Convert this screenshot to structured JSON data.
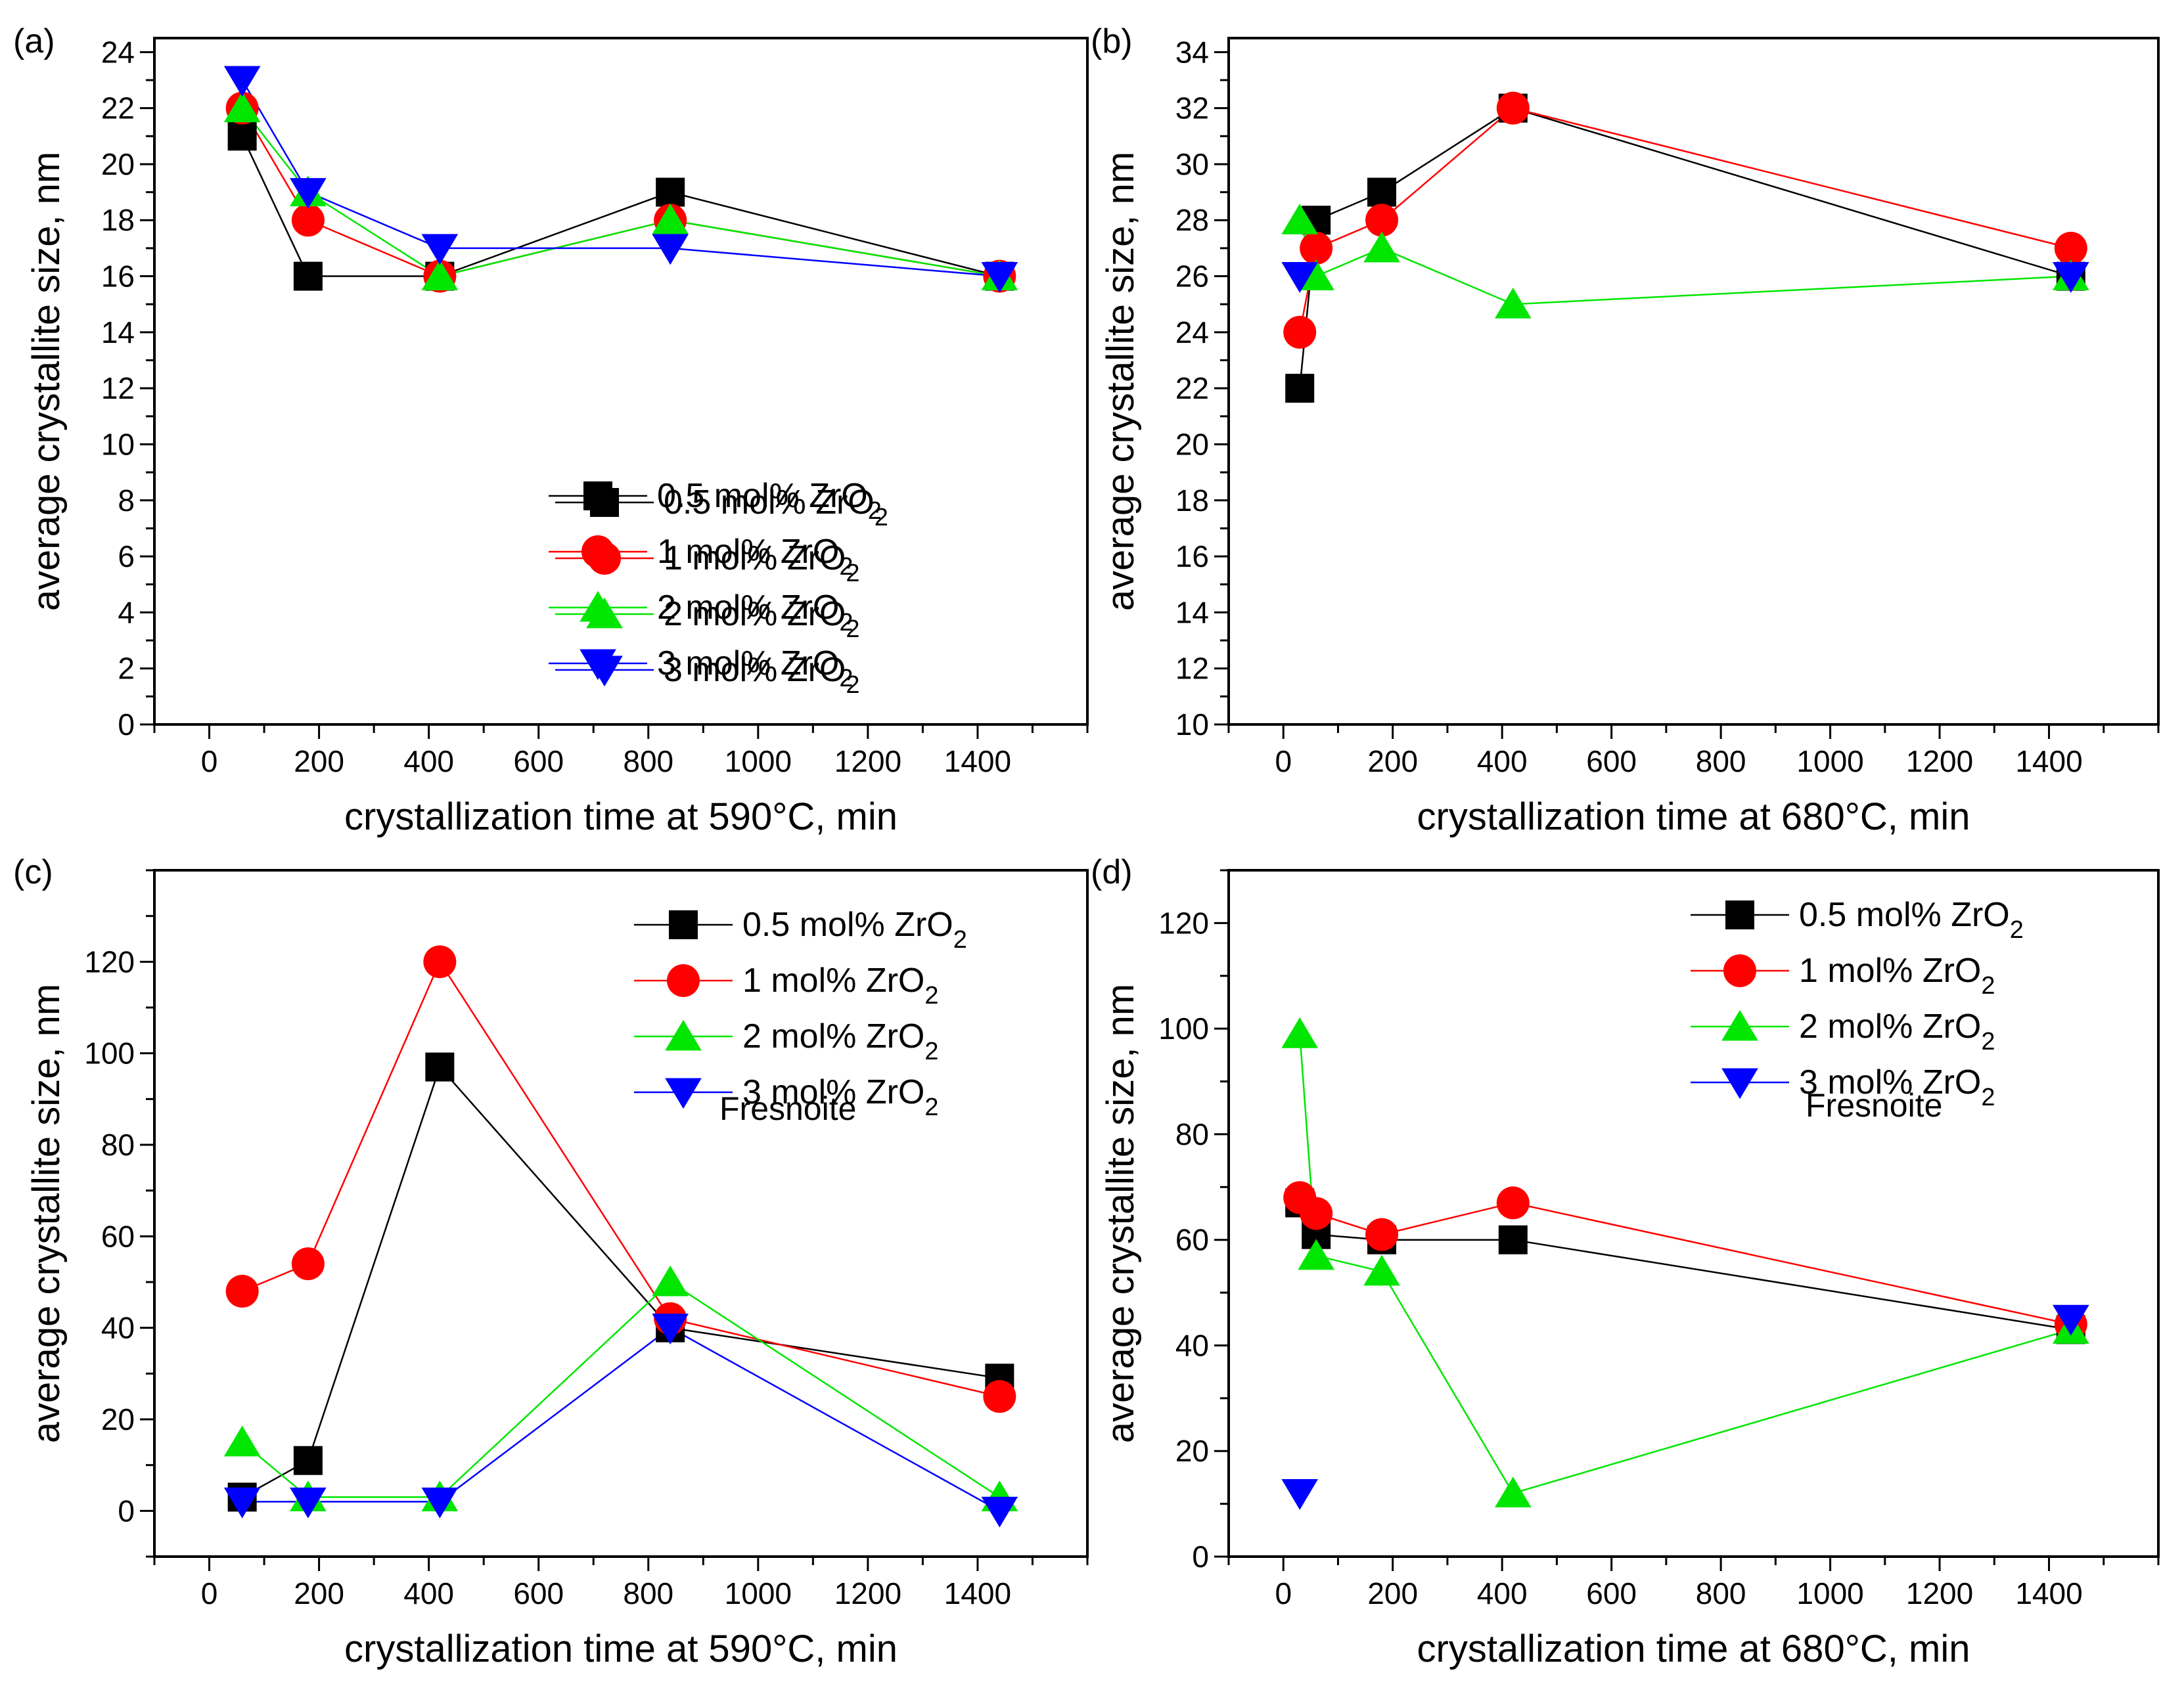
{
  "colors": {
    "0.5 mol% ZrO2": "#000000",
    "1 mol% ZrO2": "#ff0000",
    "2 mol% ZrO2": "#00e600",
    "3 mol% ZrO2": "#0000ff"
  },
  "chart_data": [
    {
      "panel": "(a)",
      "type": "line",
      "title": "",
      "xlabel": "crystallization time at 590°C, min",
      "ylabel": "average crystallite size, nm",
      "xlim": [
        -100,
        1600
      ],
      "ylim": [
        0,
        24.5
      ],
      "xticks": [
        0,
        200,
        400,
        600,
        800,
        1000,
        1200,
        1400
      ],
      "yticks": [
        0,
        2,
        4,
        6,
        8,
        10,
        12,
        14,
        16,
        18,
        20,
        22,
        24
      ],
      "legend_position": "lower-right",
      "annotation": "",
      "series": [
        {
          "name": "0.5 mol% ZrO2",
          "label_main": "0.5 mol% ZrO",
          "label_sub": "2",
          "marker": "square",
          "x": [
            60,
            180,
            420,
            840,
            1440
          ],
          "y": [
            21,
            16,
            16,
            19,
            16
          ]
        },
        {
          "name": "1 mol% ZrO2",
          "label_main": "1 mol% ZrO",
          "label_sub": "2",
          "marker": "circle",
          "x": [
            60,
            180,
            420,
            840,
            1440
          ],
          "y": [
            22,
            18,
            16,
            18,
            16
          ]
        },
        {
          "name": "2 mol% ZrO2",
          "label_main": "2 mol% ZrO",
          "label_sub": "2",
          "marker": "triangle-up",
          "x": [
            60,
            180,
            420,
            840,
            1440
          ],
          "y": [
            22,
            19,
            16,
            18,
            16
          ]
        },
        {
          "name": "3 mol% ZrO2",
          "label_main": "3 mol% ZrO",
          "label_sub": "2",
          "marker": "triangle-down",
          "x": [
            60,
            180,
            420,
            840,
            1440
          ],
          "y": [
            23,
            19,
            17,
            17,
            16
          ]
        }
      ]
    },
    {
      "panel": "(b)",
      "type": "line",
      "title": "",
      "xlabel": "crystallization time at 680°C, min",
      "ylabel": "average crystallite size, nm",
      "xlim": [
        -100,
        1600
      ],
      "ylim": [
        10,
        34.5
      ],
      "xticks": [
        0,
        200,
        400,
        600,
        800,
        1000,
        1200,
        1400
      ],
      "yticks": [
        10,
        12,
        14,
        16,
        18,
        20,
        22,
        24,
        26,
        28,
        30,
        32,
        34
      ],
      "legend_position": "lower-right",
      "annotation": "",
      "series": [
        {
          "name": "0.5 mol% ZrO2",
          "label_main": "0.5 mol% ZrO",
          "label_sub": "2",
          "marker": "square",
          "x": [
            30,
            60,
            180,
            420,
            1440
          ],
          "y": [
            22,
            28,
            29,
            32,
            26
          ]
        },
        {
          "name": "1 mol% ZrO2",
          "label_main": "1 mol% ZrO",
          "label_sub": "2",
          "marker": "circle",
          "x": [
            30,
            60,
            180,
            420,
            1440
          ],
          "y": [
            24,
            27,
            28,
            32,
            27
          ]
        },
        {
          "name": "2 mol% ZrO2",
          "label_main": "2 mol% ZrO",
          "label_sub": "2",
          "marker": "triangle-up",
          "x": [
            30,
            60,
            180,
            420,
            1440
          ],
          "y": [
            28,
            26,
            27,
            25,
            26
          ]
        },
        {
          "name": "3 mol% ZrO2",
          "label_main": "3 mol% ZrO",
          "label_sub": "2",
          "marker": "triangle-down",
          "x": [
            30,
            1440
          ],
          "y": [
            26,
            26
          ],
          "connected": false
        }
      ]
    },
    {
      "panel": "(c)",
      "type": "line",
      "title": "",
      "xlabel": "crystallization time at 590°C, min",
      "ylabel": "average crystallite size, nm",
      "xlim": [
        -100,
        1600
      ],
      "ylim": [
        -10,
        140
      ],
      "xticks": [
        0,
        200,
        400,
        600,
        800,
        1000,
        1200,
        1400
      ],
      "yticks": [
        0,
        20,
        40,
        60,
        80,
        100,
        120
      ],
      "legend_position": "top-right",
      "annotation": "Fresnoite",
      "series": [
        {
          "name": "0.5 mol% ZrO2",
          "label_main": "0.5 mol% ZrO",
          "label_sub": "2",
          "marker": "square",
          "x": [
            60,
            180,
            420,
            840,
            1440
          ],
          "y": [
            3,
            11,
            97,
            40,
            29
          ]
        },
        {
          "name": "1 mol% ZrO2",
          "label_main": "1 mol% ZrO",
          "label_sub": "2",
          "marker": "circle",
          "x": [
            60,
            180,
            420,
            840,
            1440
          ],
          "y": [
            48,
            54,
            120,
            42,
            25
          ]
        },
        {
          "name": "2 mol% ZrO2",
          "label_main": "2 mol% ZrO",
          "label_sub": "2",
          "marker": "triangle-up",
          "x": [
            60,
            180,
            420,
            840,
            1440
          ],
          "y": [
            15,
            3,
            3,
            50,
            3
          ]
        },
        {
          "name": "3 mol% ZrO2",
          "label_main": "3 mol% ZrO",
          "label_sub": "2",
          "marker": "triangle-down",
          "x": [
            60,
            180,
            420,
            840,
            1440
          ],
          "y": [
            2,
            2,
            2,
            40,
            0
          ]
        }
      ]
    },
    {
      "panel": "(d)",
      "type": "line",
      "title": "",
      "xlabel": "crystallization time at 680°C, min",
      "ylabel": "average crystallite size, nm",
      "xlim": [
        -100,
        1600
      ],
      "ylim": [
        0,
        130
      ],
      "xticks": [
        0,
        200,
        400,
        600,
        800,
        1000,
        1200,
        1400
      ],
      "yticks": [
        0,
        20,
        40,
        60,
        80,
        100,
        120
      ],
      "legend_position": "top-right",
      "annotation": "Fresnoite",
      "series": [
        {
          "name": "0.5 mol% ZrO2",
          "label_main": "0.5 mol% ZrO",
          "label_sub": "2",
          "marker": "square",
          "x": [
            30,
            60,
            180,
            420,
            1440
          ],
          "y": [
            67,
            61,
            60,
            60,
            43
          ]
        },
        {
          "name": "1 mol% ZrO2",
          "label_main": "1 mol% ZrO",
          "label_sub": "2",
          "marker": "circle",
          "x": [
            30,
            60,
            180,
            420,
            1440
          ],
          "y": [
            68,
            65,
            61,
            67,
            44
          ]
        },
        {
          "name": "2 mol% ZrO2",
          "label_main": "2 mol% ZrO",
          "label_sub": "2",
          "marker": "triangle-up",
          "x": [
            30,
            60,
            180,
            420,
            1440
          ],
          "y": [
            99,
            57,
            54,
            12,
            43
          ]
        },
        {
          "name": "3 mol% ZrO2",
          "label_main": "3 mol% ZrO",
          "label_sub": "2",
          "marker": "triangle-down",
          "x": [
            30,
            1440
          ],
          "y": [
            12,
            45
          ],
          "connected": false
        }
      ]
    }
  ]
}
